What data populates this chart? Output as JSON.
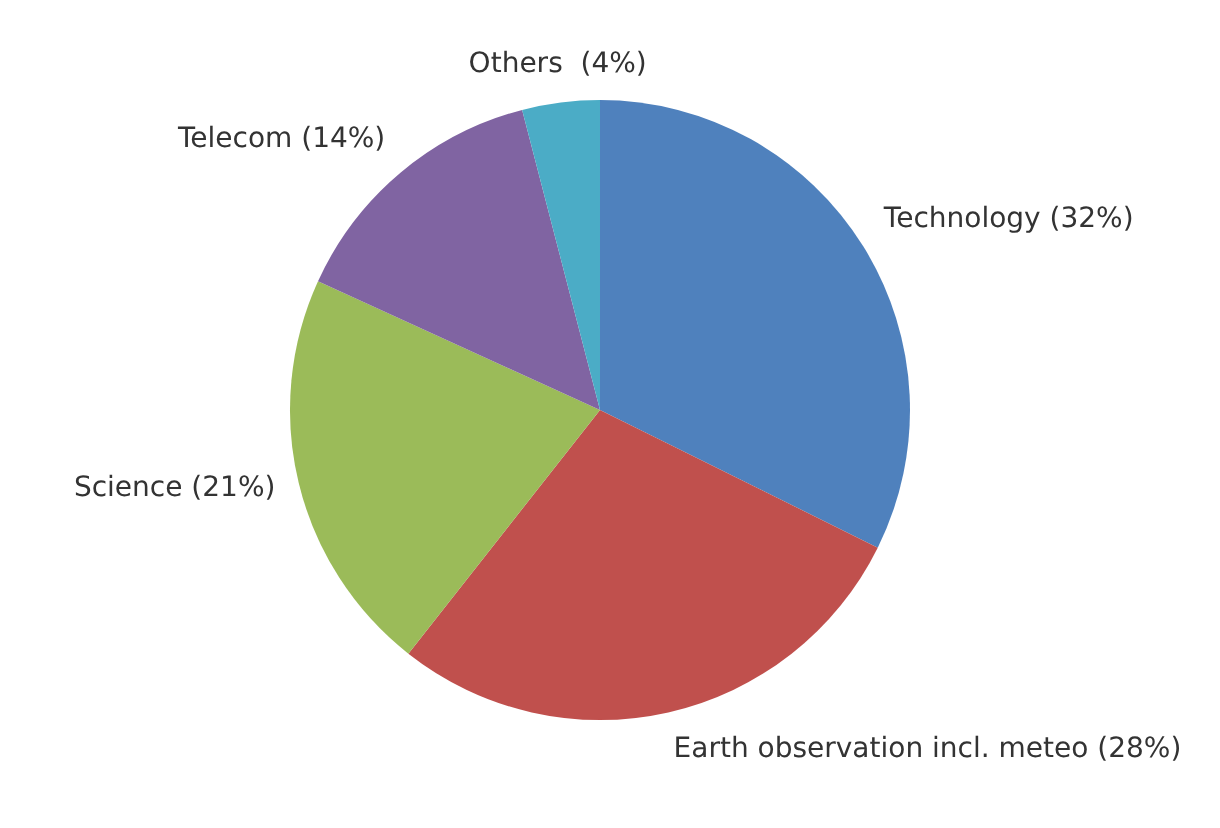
{
  "chart_data": {
    "type": "pie",
    "categories": [
      "Technology (32%)",
      "Earth observation incl. meteo (28%)",
      "Science (21%)",
      "Telecom (14%)",
      "Others  (4%)"
    ],
    "values": [
      32,
      28,
      21,
      14,
      4
    ],
    "colors": [
      "#4f81bd",
      "#c0504d",
      "#9bbb59",
      "#8064a2",
      "#4bacc6"
    ],
    "legend": false
  }
}
